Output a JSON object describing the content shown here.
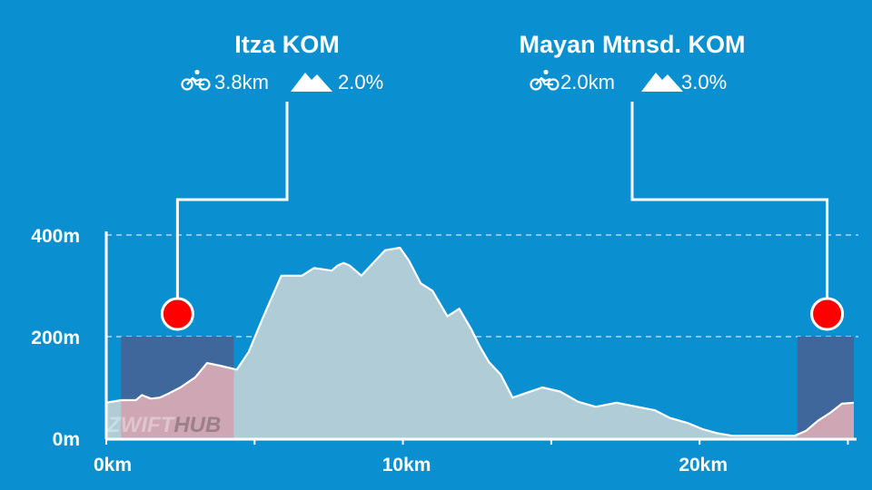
{
  "chart_data": {
    "type": "area",
    "title": "",
    "xlabel": "",
    "ylabel": "",
    "xlim": [
      0,
      25.2
    ],
    "ylim": [
      0,
      400
    ],
    "x_ticks": [
      {
        "value": 0,
        "label": "0km"
      },
      {
        "value": 5,
        "label": ""
      },
      {
        "value": 10,
        "label": "10km"
      },
      {
        "value": 15,
        "label": ""
      },
      {
        "value": 20,
        "label": "20km"
      },
      {
        "value": 25,
        "label": ""
      }
    ],
    "y_ticks": [
      {
        "value": 0,
        "label": "0m"
      },
      {
        "value": 200,
        "label": "200m"
      },
      {
        "value": 400,
        "label": "400m"
      }
    ],
    "grid": "horizontal dashed",
    "series": [
      {
        "values_unit": "m",
        "x": [
          0,
          0.5,
          1.0,
          1.2,
          1.5,
          1.8,
          2.1,
          2.5,
          3.0,
          3.4,
          3.9,
          4.4,
          4.8,
          5.3,
          5.9,
          6.6,
          7.0,
          7.6,
          7.8,
          8.0,
          8.2,
          8.6,
          9.0,
          9.4,
          9.9,
          10.2,
          10.6,
          11.0,
          11.5,
          11.9,
          12.3,
          12.6,
          12.9,
          13.3,
          13.7,
          14.2,
          14.7,
          15.3,
          15.9,
          16.5,
          17.2,
          17.9,
          18.5,
          19.0,
          19.6,
          20.1,
          20.6,
          21.1,
          21.6,
          22.2,
          22.8,
          23.2,
          23.6,
          24.0,
          24.4,
          24.8,
          25.2
        ],
        "y": [
          70,
          75,
          75,
          85,
          78,
          80,
          88,
          100,
          120,
          148,
          142,
          135,
          170,
          240,
          320,
          320,
          335,
          330,
          340,
          345,
          340,
          320,
          345,
          370,
          375,
          350,
          305,
          290,
          240,
          255,
          215,
          180,
          150,
          125,
          80,
          90,
          100,
          92,
          72,
          62,
          70,
          62,
          55,
          40,
          30,
          18,
          10,
          5,
          5,
          5,
          5,
          5,
          15,
          35,
          50,
          68,
          70
        ]
      }
    ],
    "segments": [
      {
        "name": "Itza KOM",
        "length": "3.8km",
        "grade": "2.0%",
        "start_km": 0.5,
        "end_km": 4.3,
        "marker_km": 2.4
      },
      {
        "name": "Mayan Mtnsd. KOM",
        "length": "2.0km",
        "grade": "3.0%",
        "start_km": 23.3,
        "end_km": 25.2,
        "marker_km": 24.3
      }
    ]
  },
  "watermark": {
    "part1": "ZWIFT",
    "part2": "HUB"
  },
  "colors": {
    "background": "#0a8fd0",
    "area_fill": "#b0ccd6",
    "segment_box": "#3f679b",
    "segment_area": "#cfa6b3",
    "marker": "#ff0000",
    "line": "#ffffff"
  }
}
